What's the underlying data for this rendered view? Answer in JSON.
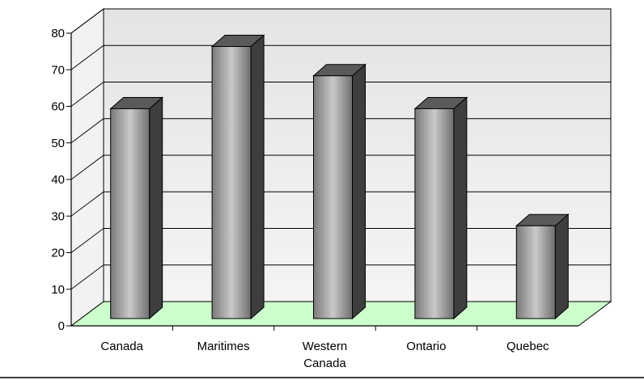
{
  "chart_data": {
    "type": "bar",
    "style": "3d-column",
    "title": "",
    "xlabel": "",
    "ylabel": "",
    "categories": [
      "Canada",
      "Maritimes",
      "Western\nCanada",
      "Ontario",
      "Quebec"
    ],
    "values": [
      62,
      79,
      71,
      62,
      30
    ],
    "ylim": [
      0,
      80
    ],
    "yticks": [
      0,
      10,
      20,
      30,
      40,
      50,
      60,
      70,
      80
    ],
    "grid": true,
    "legend": "none",
    "colors": {
      "wall": "#ebebeb",
      "floor": "#ccffcc",
      "bar_front_dark": "#777777",
      "bar_front_light": "#c8c8c8",
      "bar_top": "#5a5a5a",
      "bar_side": "#3e3e3e",
      "gridline": "#000000"
    }
  }
}
